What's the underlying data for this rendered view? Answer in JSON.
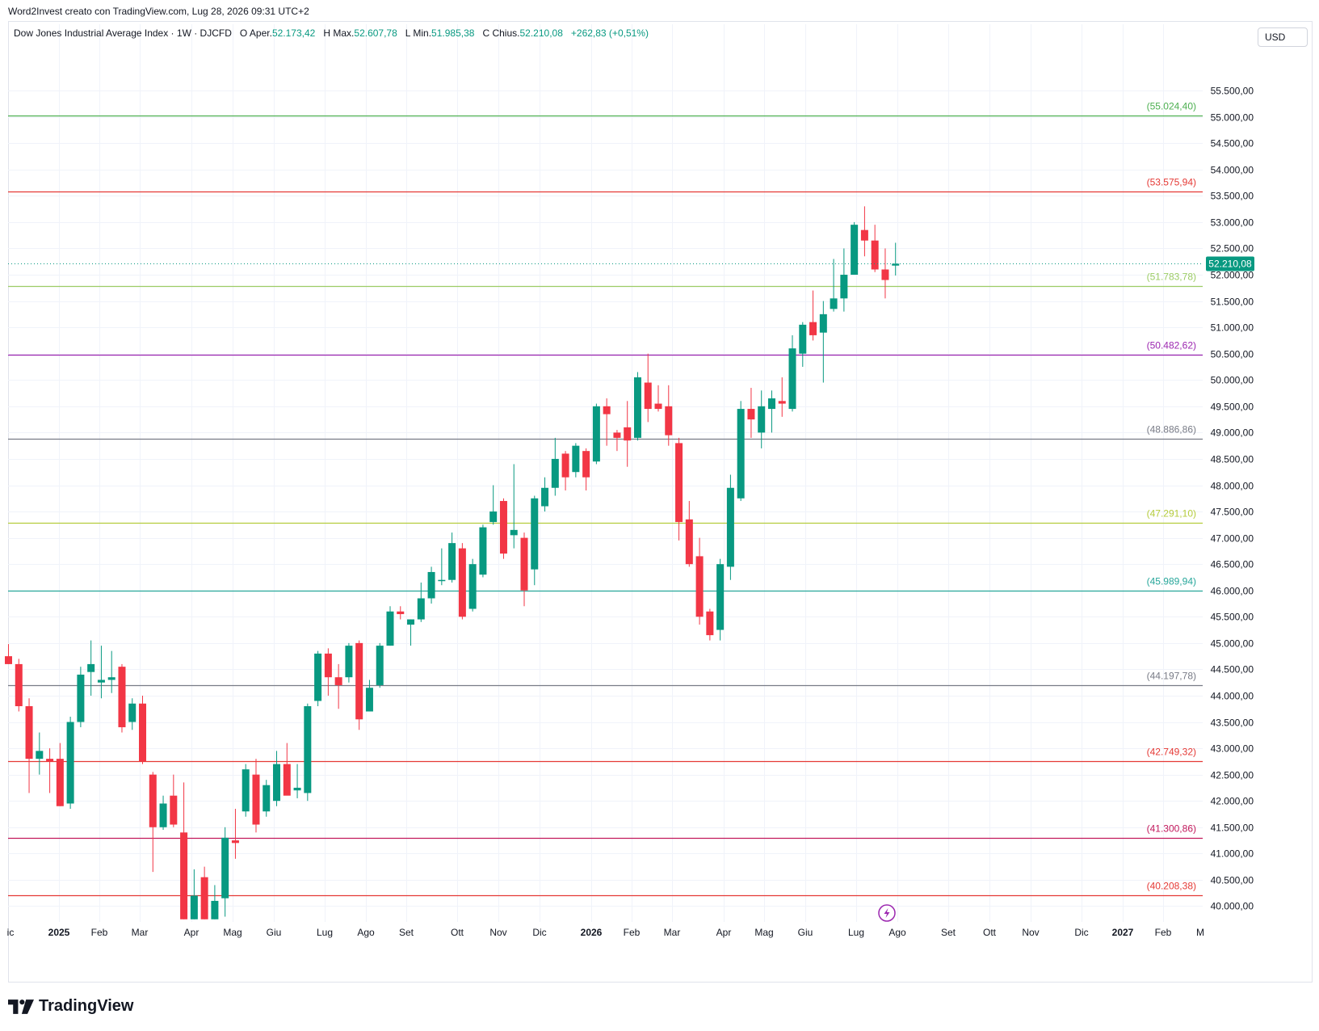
{
  "header": {
    "credit": "Word2Invest creato con TradingView.com, Lug 28, 2026 09:31 UTC+2"
  },
  "legend": {
    "symbol": "Dow Jones Industrial Average Index · 1W · DJCFD",
    "open_label": "O",
    "open_key": "Aper.",
    "open_value": "52.173,42",
    "high_label": "H",
    "high_key": "Max.",
    "high_value": "52.607,78",
    "low_label": "L",
    "low_key": "Min.",
    "low_value": "51.985,38",
    "close_label": "C",
    "close_key": "Chius.",
    "close_value": "52.210,08",
    "change": "+262,83 (+0,51%)"
  },
  "currency_button": "USD",
  "footer": {
    "brand": "TradingView"
  },
  "colors": {
    "up": "#089981",
    "down": "#f23645",
    "grid": "#f0f3fa"
  },
  "chart_data": {
    "type": "candlestick",
    "ylim": [
      39700,
      56300
    ],
    "y_ticks": [
      40000,
      40500,
      41000,
      41500,
      42000,
      42500,
      43000,
      43500,
      44000,
      44500,
      45000,
      45500,
      46000,
      46500,
      47000,
      47500,
      48000,
      48500,
      49000,
      49500,
      50000,
      50500,
      51000,
      51500,
      52000,
      52500,
      53000,
      53500,
      54000,
      54500,
      55000,
      55500
    ],
    "x_labels": [
      "ic",
      "2025",
      "Feb",
      "Mar",
      "Apr",
      "Mag",
      "Giu",
      "Lug",
      "Ago",
      "Set",
      "Ott",
      "Nov",
      "Dic",
      "2026",
      "Feb",
      "Mar",
      "Apr",
      "Mag",
      "Giu",
      "Lug",
      "Ago",
      "Set",
      "Ott",
      "Nov",
      "Dic",
      "2027",
      "Feb",
      "M"
    ],
    "bold_x_labels": [
      "2025",
      "2026",
      "2027"
    ],
    "current_price": {
      "value": 52210.08,
      "label": "52.210,08"
    },
    "horizontal_levels": [
      {
        "value": 55024.4,
        "label": "(55.024,40)",
        "color": "#4caf50"
      },
      {
        "value": 53575.94,
        "label": "(53.575,94)",
        "color": "#e53935"
      },
      {
        "value": 51783.78,
        "label": "(51.783,78)",
        "color": "#9ccc65"
      },
      {
        "value": 50482.62,
        "label": "(50.482,62)",
        "color": "#9c27b0"
      },
      {
        "value": 48886.86,
        "label": "(48.886,86)",
        "color": "#787b86"
      },
      {
        "value": 47291.1,
        "label": "(47.291,10)",
        "color": "#b5cc3c"
      },
      {
        "value": 45989.94,
        "label": "(45.989,94)",
        "color": "#26a69a"
      },
      {
        "value": 44197.78,
        "label": "(44.197,78)",
        "color": "#787b86"
      },
      {
        "value": 42749.32,
        "label": "(42.749,32)",
        "color": "#e53935"
      },
      {
        "value": 41300.86,
        "label": "(41.300,86)",
        "color": "#c2185b"
      },
      {
        "value": 40208.38,
        "label": "(40.208,38)",
        "color": "#e53935"
      }
    ],
    "candles": [
      {
        "o": 44750,
        "h": 44980,
        "l": 44600,
        "c": 44600
      },
      {
        "o": 44600,
        "h": 44700,
        "l": 43700,
        "c": 43800
      },
      {
        "o": 43800,
        "h": 43950,
        "l": 42150,
        "c": 42800
      },
      {
        "o": 42800,
        "h": 43300,
        "l": 42500,
        "c": 42950
      },
      {
        "o": 42800,
        "h": 43000,
        "l": 42150,
        "c": 42750
      },
      {
        "o": 42800,
        "h": 43100,
        "l": 41900,
        "c": 41900
      },
      {
        "o": 41950,
        "h": 43600,
        "l": 41850,
        "c": 43500
      },
      {
        "o": 43500,
        "h": 44550,
        "l": 43400,
        "c": 44400
      },
      {
        "o": 44450,
        "h": 45050,
        "l": 44000,
        "c": 44600
      },
      {
        "o": 44250,
        "h": 44950,
        "l": 43950,
        "c": 44300
      },
      {
        "o": 44300,
        "h": 44850,
        "l": 44050,
        "c": 44350
      },
      {
        "o": 44550,
        "h": 44600,
        "l": 43300,
        "c": 43400
      },
      {
        "o": 43500,
        "h": 43950,
        "l": 43350,
        "c": 43850
      },
      {
        "o": 43850,
        "h": 44000,
        "l": 42700,
        "c": 42750
      },
      {
        "o": 42500,
        "h": 42550,
        "l": 40650,
        "c": 41500
      },
      {
        "o": 41500,
        "h": 42100,
        "l": 41450,
        "c": 41950
      },
      {
        "o": 42100,
        "h": 42500,
        "l": 41500,
        "c": 41550
      },
      {
        "o": 41400,
        "h": 42350,
        "l": 39750,
        "c": 39750
      },
      {
        "o": 39750,
        "h": 40700,
        "l": 39750,
        "c": 40200
      },
      {
        "o": 40550,
        "h": 40750,
        "l": 39750,
        "c": 39750
      },
      {
        "o": 39750,
        "h": 40400,
        "l": 39750,
        "c": 40100
      },
      {
        "o": 40150,
        "h": 41500,
        "l": 39800,
        "c": 41300
      },
      {
        "o": 41250,
        "h": 41850,
        "l": 40900,
        "c": 41200
      },
      {
        "o": 41800,
        "h": 42700,
        "l": 41700,
        "c": 42600
      },
      {
        "o": 42500,
        "h": 42800,
        "l": 41400,
        "c": 41550
      },
      {
        "o": 41800,
        "h": 42400,
        "l": 41700,
        "c": 42300
      },
      {
        "o": 42000,
        "h": 42950,
        "l": 41900,
        "c": 42700
      },
      {
        "o": 42700,
        "h": 43100,
        "l": 42200,
        "c": 42100
      },
      {
        "o": 42200,
        "h": 42700,
        "l": 42050,
        "c": 42250
      },
      {
        "o": 42150,
        "h": 43850,
        "l": 42000,
        "c": 43800
      },
      {
        "o": 43900,
        "h": 44850,
        "l": 43800,
        "c": 44800
      },
      {
        "o": 44800,
        "h": 44900,
        "l": 44000,
        "c": 44350
      },
      {
        "o": 44350,
        "h": 44600,
        "l": 43750,
        "c": 44200
      },
      {
        "o": 44350,
        "h": 45000,
        "l": 44250,
        "c": 44950
      },
      {
        "o": 45000,
        "h": 45050,
        "l": 43350,
        "c": 43550
      },
      {
        "o": 43700,
        "h": 44300,
        "l": 43700,
        "c": 44150
      },
      {
        "o": 44200,
        "h": 45000,
        "l": 44150,
        "c": 44950
      },
      {
        "o": 44950,
        "h": 45700,
        "l": 44950,
        "c": 45600
      },
      {
        "o": 45600,
        "h": 45700,
        "l": 45450,
        "c": 45550
      },
      {
        "o": 45350,
        "h": 45450,
        "l": 44950,
        "c": 45450
      },
      {
        "o": 45450,
        "h": 46150,
        "l": 45400,
        "c": 45850
      },
      {
        "o": 45850,
        "h": 46450,
        "l": 45750,
        "c": 46350
      },
      {
        "o": 46200,
        "h": 46800,
        "l": 46100,
        "c": 46200
      },
      {
        "o": 46200,
        "h": 47100,
        "l": 46150,
        "c": 46900
      },
      {
        "o": 46800,
        "h": 46900,
        "l": 45450,
        "c": 45500
      },
      {
        "o": 45650,
        "h": 46600,
        "l": 45600,
        "c": 46500
      },
      {
        "o": 46300,
        "h": 47250,
        "l": 46250,
        "c": 47200
      },
      {
        "o": 47300,
        "h": 48000,
        "l": 47250,
        "c": 47500
      },
      {
        "o": 47700,
        "h": 47750,
        "l": 46600,
        "c": 46700
      },
      {
        "o": 47050,
        "h": 48400,
        "l": 46800,
        "c": 47150
      },
      {
        "o": 47000,
        "h": 47100,
        "l": 45700,
        "c": 46000
      },
      {
        "o": 46400,
        "h": 47800,
        "l": 46100,
        "c": 47750
      },
      {
        "o": 47600,
        "h": 48150,
        "l": 47500,
        "c": 47950
      },
      {
        "o": 47950,
        "h": 48900,
        "l": 47800,
        "c": 48500
      },
      {
        "o": 48600,
        "h": 48650,
        "l": 47900,
        "c": 48150
      },
      {
        "o": 48250,
        "h": 48800,
        "l": 48150,
        "c": 48750
      },
      {
        "o": 48650,
        "h": 48700,
        "l": 47900,
        "c": 48150
      },
      {
        "o": 48450,
        "h": 49550,
        "l": 48400,
        "c": 49500
      },
      {
        "o": 49500,
        "h": 49650,
        "l": 48750,
        "c": 49350
      },
      {
        "o": 49000,
        "h": 49050,
        "l": 48650,
        "c": 48900
      },
      {
        "o": 49100,
        "h": 49600,
        "l": 48350,
        "c": 48850
      },
      {
        "o": 48900,
        "h": 50150,
        "l": 48850,
        "c": 50050
      },
      {
        "o": 49950,
        "h": 50500,
        "l": 49200,
        "c": 49450
      },
      {
        "o": 49550,
        "h": 49900,
        "l": 49400,
        "c": 49450
      },
      {
        "o": 49500,
        "h": 49900,
        "l": 48750,
        "c": 48950
      },
      {
        "o": 48800,
        "h": 48900,
        "l": 46950,
        "c": 47300
      },
      {
        "o": 47350,
        "h": 47700,
        "l": 46450,
        "c": 46500
      },
      {
        "o": 46650,
        "h": 47000,
        "l": 45350,
        "c": 45500
      },
      {
        "o": 45600,
        "h": 45650,
        "l": 45050,
        "c": 45150
      },
      {
        "o": 45250,
        "h": 46600,
        "l": 45050,
        "c": 46500
      },
      {
        "o": 46450,
        "h": 48200,
        "l": 46200,
        "c": 47950
      },
      {
        "o": 47750,
        "h": 49600,
        "l": 47700,
        "c": 49450
      },
      {
        "o": 49450,
        "h": 49850,
        "l": 48900,
        "c": 49250
      },
      {
        "o": 49000,
        "h": 49800,
        "l": 48700,
        "c": 49500
      },
      {
        "o": 49450,
        "h": 49800,
        "l": 49000,
        "c": 49650
      },
      {
        "o": 49600,
        "h": 50050,
        "l": 49300,
        "c": 49550
      },
      {
        "o": 49450,
        "h": 50850,
        "l": 49400,
        "c": 50600
      },
      {
        "o": 50500,
        "h": 51100,
        "l": 50250,
        "c": 51050
      },
      {
        "o": 51100,
        "h": 51700,
        "l": 50750,
        "c": 50850
      },
      {
        "o": 50900,
        "h": 51500,
        "l": 49950,
        "c": 51250
      },
      {
        "o": 51350,
        "h": 52300,
        "l": 51300,
        "c": 51550
      },
      {
        "o": 51550,
        "h": 52500,
        "l": 51300,
        "c": 52000
      },
      {
        "o": 52000,
        "h": 53000,
        "l": 52000,
        "c": 52950
      },
      {
        "o": 52850,
        "h": 53300,
        "l": 52350,
        "c": 52650
      },
      {
        "o": 52650,
        "h": 52950,
        "l": 52050,
        "c": 52100
      },
      {
        "o": 52100,
        "h": 52500,
        "l": 51550,
        "c": 51900
      },
      {
        "o": 52173.42,
        "h": 52607.78,
        "l": 51985.38,
        "c": 52210.08
      }
    ]
  }
}
